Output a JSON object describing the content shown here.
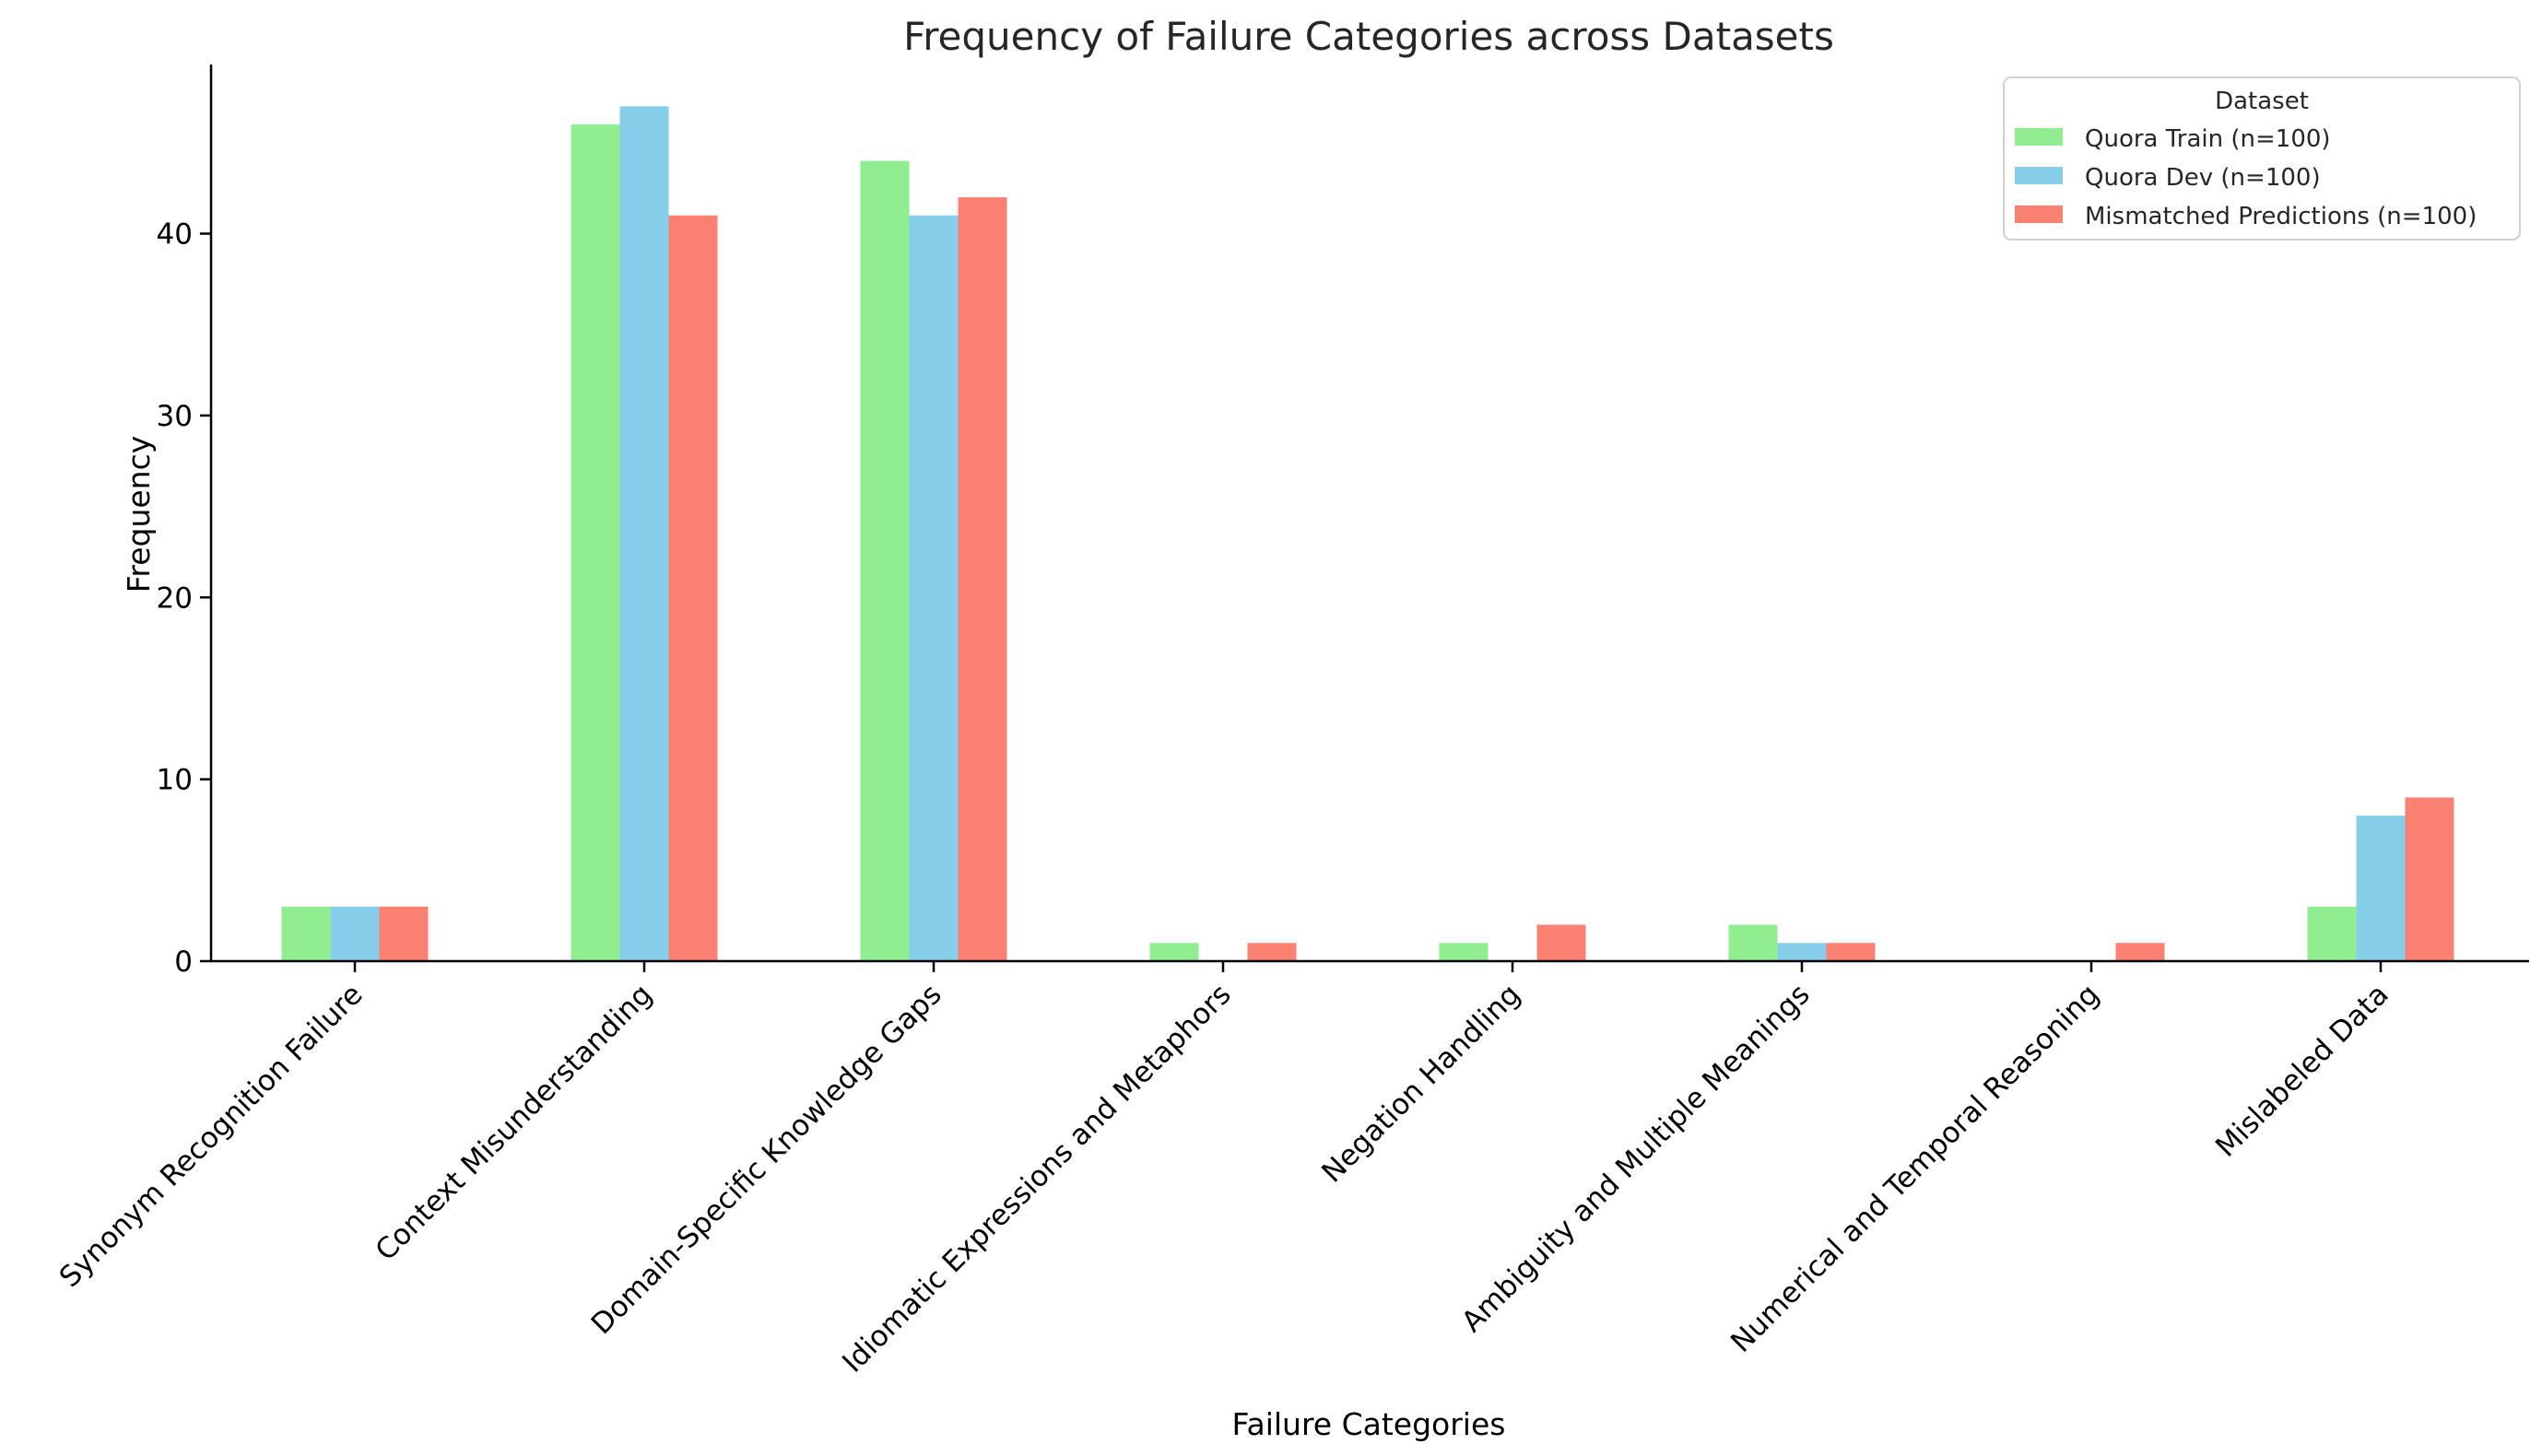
{
  "chart_data": {
    "type": "bar",
    "title": "Frequency of Failure Categories across Datasets",
    "xlabel": "Failure Categories",
    "ylabel": "Frequency",
    "ylim": [
      0,
      49.3
    ],
    "yticks": [
      0,
      10,
      20,
      30,
      40
    ],
    "grid": false,
    "legend": {
      "title": "Dataset",
      "placement": "top-right"
    },
    "categories": [
      "Synonym Recognition Failure",
      "Context Misunderstanding",
      "Domain-Specific Knowledge Gaps",
      "Idiomatic Expressions and Metaphors",
      "Negation Handling",
      "Ambiguity and Multiple Meanings",
      "Numerical and Temporal Reasoning",
      "Mislabeled Data"
    ],
    "series": [
      {
        "name": "Quora Train (n=100)",
        "color": "#90ee90",
        "values": [
          3,
          46,
          44,
          1,
          1,
          2,
          0,
          3
        ]
      },
      {
        "name": "Quora Dev (n=100)",
        "color": "#87ceeb",
        "values": [
          3,
          47,
          41,
          0,
          0,
          1,
          0,
          8
        ]
      },
      {
        "name": "Mismatched Predictions (n=100)",
        "color": "#fa8072",
        "values": [
          3,
          41,
          42,
          1,
          2,
          1,
          1,
          9
        ]
      }
    ]
  }
}
